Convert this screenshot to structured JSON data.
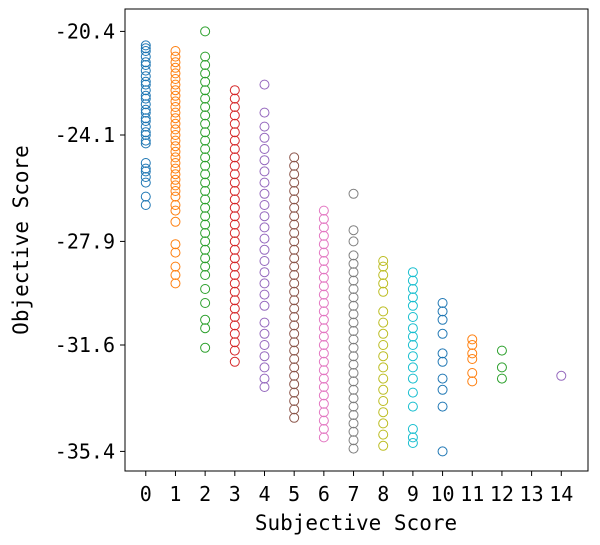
{
  "chart_data": {
    "type": "scatter",
    "title": "",
    "xlabel": "Subjective Score",
    "ylabel": "Objective Score",
    "xlim": [
      -0.7,
      14.9
    ],
    "ylim": [
      -36.1,
      -19.6
    ],
    "x_ticks": [
      0,
      1,
      2,
      3,
      4,
      5,
      6,
      7,
      8,
      9,
      10,
      11,
      12,
      13,
      14
    ],
    "y_ticks": [
      -20.4,
      -24.1,
      -27.9,
      -31.6,
      -35.4
    ],
    "y_tick_labels": [
      "-20.4",
      "-24.1",
      "-27.9",
      "-31.6",
      "-35.4"
    ],
    "marker": "hollow-circle",
    "grid": false,
    "legend": "none",
    "groups": [
      {
        "x": 0,
        "color": "#1f77b4",
        "y": [
          -20.9,
          -21.0,
          -21.1,
          -21.3,
          -21.5,
          -21.6,
          -21.8,
          -22.0,
          -22.2,
          -22.3,
          -22.5,
          -22.7,
          -22.8,
          -23.0,
          -23.2,
          -23.3,
          -23.5,
          -23.6,
          -23.8,
          -24.0,
          -24.1,
          -24.3,
          -24.4,
          -25.1,
          -25.3,
          -25.4,
          -25.6,
          -25.8,
          -26.3,
          -26.6
        ]
      },
      {
        "x": 1,
        "color": "#ff7f0e",
        "y": [
          -21.1,
          -21.3,
          -21.5,
          -21.7,
          -21.9,
          -22.1,
          -22.3,
          -22.5,
          -22.7,
          -22.9,
          -23.1,
          -23.3,
          -23.5,
          -23.7,
          -23.9,
          -24.1,
          -24.3,
          -24.5,
          -24.7,
          -24.9,
          -25.1,
          -25.3,
          -25.5,
          -25.7,
          -25.9,
          -26.1,
          -26.3,
          -26.6,
          -26.8,
          -27.2,
          -28.0,
          -28.3,
          -28.8,
          -29.1,
          -29.4
        ]
      },
      {
        "x": 2,
        "color": "#2ca02c",
        "y": [
          -20.4,
          -21.3,
          -21.6,
          -21.9,
          -22.2,
          -22.5,
          -22.8,
          -23.1,
          -23.4,
          -23.7,
          -24.0,
          -24.3,
          -24.6,
          -24.9,
          -25.2,
          -25.5,
          -25.8,
          -26.1,
          -26.4,
          -26.7,
          -27.0,
          -27.3,
          -27.6,
          -27.9,
          -28.2,
          -28.5,
          -28.8,
          -29.1,
          -29.6,
          -30.1,
          -30.7,
          -31.0,
          -31.7
        ]
      },
      {
        "x": 3,
        "color": "#d62728",
        "y": [
          -22.5,
          -22.8,
          -23.1,
          -23.4,
          -23.7,
          -24.0,
          -24.3,
          -24.6,
          -24.9,
          -25.2,
          -25.5,
          -25.8,
          -26.1,
          -26.4,
          -26.7,
          -27.0,
          -27.3,
          -27.6,
          -27.9,
          -28.2,
          -28.5,
          -28.8,
          -29.1,
          -29.4,
          -29.7,
          -30.0,
          -30.3,
          -30.6,
          -30.9,
          -31.2,
          -31.5,
          -31.8,
          -32.2
        ]
      },
      {
        "x": 4,
        "color": "#9467bd",
        "y": [
          -22.3,
          -23.3,
          -23.8,
          -24.2,
          -24.6,
          -25.0,
          -25.4,
          -25.8,
          -26.2,
          -26.6,
          -27.0,
          -27.4,
          -27.8,
          -28.2,
          -28.6,
          -29.0,
          -29.4,
          -29.8,
          -30.2,
          -30.8,
          -31.2,
          -31.6,
          -32.0,
          -32.4,
          -32.8,
          -33.1
        ]
      },
      {
        "x": 5,
        "color": "#8c564b",
        "y": [
          -24.9,
          -25.2,
          -25.5,
          -25.8,
          -26.1,
          -26.4,
          -26.7,
          -27.0,
          -27.3,
          -27.6,
          -27.9,
          -28.2,
          -28.5,
          -28.8,
          -29.1,
          -29.4,
          -29.7,
          -30.0,
          -30.3,
          -30.6,
          -30.9,
          -31.2,
          -31.5,
          -31.8,
          -32.1,
          -32.4,
          -32.7,
          -33.0,
          -33.3,
          -33.6,
          -33.9,
          -34.2
        ]
      },
      {
        "x": 6,
        "color": "#e377c2",
        "y": [
          -26.8,
          -27.1,
          -27.4,
          -27.7,
          -28.0,
          -28.3,
          -28.6,
          -28.9,
          -29.2,
          -29.5,
          -29.8,
          -30.1,
          -30.4,
          -30.7,
          -31.0,
          -31.3,
          -31.6,
          -31.9,
          -32.2,
          -32.5,
          -32.8,
          -33.1,
          -33.4,
          -33.7,
          -34.0,
          -34.3,
          -34.6,
          -34.9
        ]
      },
      {
        "x": 7,
        "color": "#7f7f7f",
        "y": [
          -26.2,
          -27.5,
          -27.9,
          -28.4,
          -28.7,
          -29.0,
          -29.3,
          -29.6,
          -29.9,
          -30.2,
          -30.5,
          -30.8,
          -31.1,
          -31.4,
          -31.7,
          -32.0,
          -32.3,
          -32.6,
          -32.9,
          -33.2,
          -33.5,
          -33.8,
          -34.1,
          -34.4,
          -34.7,
          -35.0,
          -35.3
        ]
      },
      {
        "x": 8,
        "color": "#bcbd22",
        "y": [
          -28.6,
          -28.8,
          -29.1,
          -29.4,
          -29.7,
          -30.4,
          -30.8,
          -31.2,
          -31.6,
          -32.0,
          -32.4,
          -32.8,
          -33.2,
          -33.6,
          -34.0,
          -34.4,
          -34.8,
          -35.2
        ]
      },
      {
        "x": 9,
        "color": "#17becf",
        "y": [
          -29.0,
          -29.3,
          -29.6,
          -29.9,
          -30.2,
          -30.6,
          -31.0,
          -31.3,
          -31.6,
          -32.0,
          -32.4,
          -32.8,
          -33.3,
          -33.8,
          -34.6,
          -34.9,
          -35.1
        ]
      },
      {
        "x": 10,
        "color": "#1f77b4",
        "y": [
          -30.1,
          -30.4,
          -30.7,
          -31.2,
          -31.9,
          -32.2,
          -32.8,
          -33.2,
          -33.8,
          -35.4
        ]
      },
      {
        "x": 11,
        "color": "#ff7f0e",
        "y": [
          -31.4,
          -31.6,
          -31.9,
          -32.1,
          -32.6,
          -32.9
        ]
      },
      {
        "x": 12,
        "color": "#2ca02c",
        "y": [
          -31.8,
          -32.4,
          -32.8
        ]
      },
      {
        "x": 14,
        "color": "#9467bd",
        "y": [
          -32.7
        ]
      }
    ]
  }
}
